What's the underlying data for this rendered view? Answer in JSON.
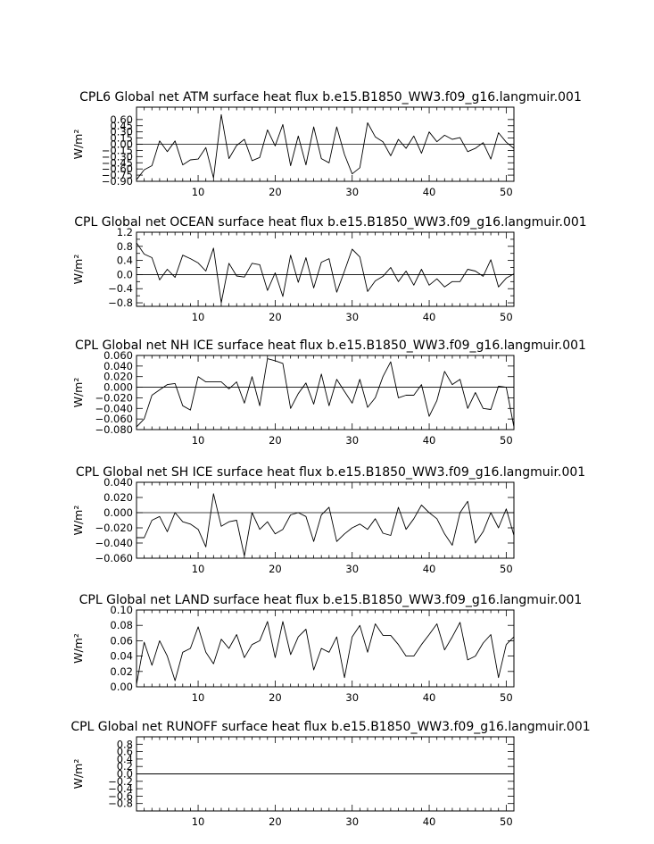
{
  "chart_data": [
    {
      "type": "line",
      "title": "CPL6 Global net ATM surface heat flux b.e15.B1850_WW3.f09_g16.langmuir.001",
      "ylabel": "W/m²",
      "xlim": [
        2,
        51
      ],
      "ylim": [
        -0.9,
        0.9
      ],
      "xticks": [
        10,
        20,
        30,
        40,
        50
      ],
      "yticks": [
        -0.9,
        -0.75,
        -0.6,
        -0.45,
        -0.3,
        -0.15,
        0.0,
        0.15,
        0.3,
        0.45,
        0.6
      ],
      "ytick_labels": [
        "−0.90",
        "−0.75",
        "−0.60",
        "−0.45",
        "−0.30",
        "−0.15",
        "0.00",
        "0.15",
        "0.30",
        "0.45",
        "0.60"
      ],
      "x": [
        2,
        3,
        4,
        5,
        6,
        7,
        8,
        9,
        10,
        11,
        12,
        13,
        14,
        15,
        16,
        17,
        18,
        19,
        20,
        21,
        22,
        23,
        24,
        25,
        26,
        27,
        28,
        29,
        30,
        31,
        32,
        33,
        34,
        35,
        36,
        37,
        38,
        39,
        40,
        41,
        42,
        43,
        44,
        45,
        46,
        47,
        48,
        49,
        50,
        51
      ],
      "values": [
        -0.86,
        -0.62,
        -0.52,
        0.08,
        -0.18,
        0.08,
        -0.5,
        -0.38,
        -0.36,
        -0.08,
        -0.82,
        0.72,
        -0.35,
        -0.03,
        0.12,
        -0.4,
        -0.32,
        0.35,
        -0.04,
        0.48,
        -0.52,
        0.2,
        -0.5,
        0.42,
        -0.35,
        -0.45,
        0.42,
        -0.25,
        -0.72,
        -0.57,
        0.52,
        0.18,
        0.06,
        -0.28,
        0.12,
        -0.1,
        0.2,
        -0.22,
        0.3,
        0.06,
        0.22,
        0.12,
        0.16,
        -0.18,
        -0.1,
        0.04,
        -0.36,
        0.28,
        0.05,
        -0.1
      ],
      "zero_line": true
    },
    {
      "type": "line",
      "title": "CPL Global net OCEAN surface heat flux b.e15.B1850_WW3.f09_g16.langmuir.001",
      "ylabel": "W/m²",
      "xlim": [
        2,
        51
      ],
      "ylim": [
        -0.9,
        1.2
      ],
      "xticks": [
        10,
        20,
        30,
        40,
        50
      ],
      "yticks": [
        -0.8,
        -0.6,
        -0.4,
        -0.2,
        0.0,
        0.2,
        0.4,
        0.6,
        0.8,
        1.0,
        1.2
      ],
      "ytick_labels": [
        "−0.8",
        "",
        "−0.4",
        "",
        "0.0",
        "",
        "0.4",
        "",
        "0.8",
        "",
        "1.2"
      ],
      "x": [
        2,
        3,
        4,
        5,
        6,
        7,
        8,
        9,
        10,
        11,
        12,
        13,
        14,
        15,
        16,
        17,
        18,
        19,
        20,
        21,
        22,
        23,
        24,
        25,
        26,
        27,
        28,
        29,
        30,
        31,
        32,
        33,
        34,
        35,
        36,
        37,
        38,
        39,
        40,
        41,
        42,
        43,
        44,
        45,
        46,
        47,
        48,
        49,
        50,
        51
      ],
      "values": [
        0.9,
        0.58,
        0.48,
        -0.15,
        0.15,
        -0.08,
        0.55,
        0.45,
        0.33,
        0.1,
        0.75,
        -0.8,
        0.32,
        -0.04,
        -0.07,
        0.32,
        0.28,
        -0.45,
        0.05,
        -0.62,
        0.55,
        -0.22,
        0.48,
        -0.38,
        0.35,
        0.45,
        -0.5,
        0.1,
        0.72,
        0.5,
        -0.48,
        -0.18,
        -0.05,
        0.2,
        -0.2,
        0.1,
        -0.3,
        0.15,
        -0.3,
        -0.12,
        -0.35,
        -0.2,
        -0.2,
        0.15,
        0.1,
        -0.05,
        0.42,
        -0.35,
        -0.1,
        0.02
      ],
      "zero_line": true
    },
    {
      "type": "line",
      "title": "CPL Global net NH ICE surface heat flux b.e15.B1850_WW3.f09_g16.langmuir.001",
      "ylabel": "W/m²",
      "xlim": [
        2,
        51
      ],
      "ylim": [
        -0.08,
        0.06
      ],
      "xticks": [
        10,
        20,
        30,
        40,
        50
      ],
      "yticks": [
        -0.08,
        -0.06,
        -0.04,
        -0.02,
        0.0,
        0.02,
        0.04,
        0.06
      ],
      "ytick_labels": [
        "−0.080",
        "−0.060",
        "−0.040",
        "−0.020",
        "0.000",
        "0.020",
        "0.040",
        "0.060"
      ],
      "x": [
        2,
        3,
        4,
        5,
        6,
        7,
        8,
        9,
        10,
        11,
        12,
        13,
        14,
        15,
        16,
        17,
        18,
        19,
        20,
        21,
        22,
        23,
        24,
        25,
        26,
        27,
        28,
        29,
        30,
        31,
        32,
        33,
        34,
        35,
        36,
        37,
        38,
        39,
        40,
        41,
        42,
        43,
        44,
        45,
        46,
        47,
        48,
        49,
        50,
        51
      ],
      "values": [
        -0.075,
        -0.06,
        -0.015,
        -0.005,
        0.005,
        0.007,
        -0.035,
        -0.043,
        0.02,
        0.01,
        0.01,
        0.01,
        -0.003,
        0.01,
        -0.03,
        0.02,
        -0.035,
        0.054,
        0.05,
        0.045,
        -0.04,
        -0.012,
        0.008,
        -0.032,
        0.025,
        -0.035,
        0.015,
        -0.008,
        -0.03,
        0.015,
        -0.038,
        -0.02,
        0.02,
        0.048,
        -0.02,
        -0.015,
        -0.015,
        0.005,
        -0.055,
        -0.025,
        0.03,
        0.005,
        0.015,
        -0.04,
        -0.01,
        -0.04,
        -0.042,
        0.002,
        0.0,
        -0.075
      ],
      "zero_line": true
    },
    {
      "type": "line",
      "title": "CPL Global net SH ICE surface heat flux b.e15.B1850_WW3.f09_g16.langmuir.001",
      "ylabel": "W/m²",
      "xlim": [
        2,
        51
      ],
      "ylim": [
        -0.06,
        0.04
      ],
      "xticks": [
        10,
        20,
        30,
        40,
        50
      ],
      "yticks": [
        -0.06,
        -0.04,
        -0.02,
        0.0,
        0.02,
        0.04
      ],
      "ytick_labels": [
        "−0.060",
        "−0.040",
        "−0.020",
        "0.000",
        "0.020",
        "0.040"
      ],
      "x": [
        2,
        3,
        4,
        5,
        6,
        7,
        8,
        9,
        10,
        11,
        12,
        13,
        14,
        15,
        16,
        17,
        18,
        19,
        20,
        21,
        22,
        23,
        24,
        25,
        26,
        27,
        28,
        29,
        30,
        31,
        32,
        33,
        34,
        35,
        36,
        37,
        38,
        39,
        40,
        41,
        42,
        43,
        44,
        45,
        46,
        47,
        48,
        49,
        50,
        51
      ],
      "values": [
        -0.033,
        -0.033,
        -0.01,
        -0.005,
        -0.025,
        0.0,
        -0.012,
        -0.015,
        -0.022,
        -0.045,
        0.025,
        -0.018,
        -0.012,
        -0.01,
        -0.057,
        0.0,
        -0.022,
        -0.012,
        -0.028,
        -0.022,
        -0.003,
        0.0,
        -0.005,
        -0.038,
        -0.003,
        0.007,
        -0.038,
        -0.028,
        -0.02,
        -0.015,
        -0.022,
        -0.008,
        -0.027,
        -0.03,
        0.007,
        -0.022,
        -0.008,
        0.01,
        0.0,
        -0.008,
        -0.028,
        -0.043,
        0.0,
        0.015,
        -0.04,
        -0.025,
        0.0,
        -0.02,
        0.005,
        -0.03
      ],
      "zero_line": true
    },
    {
      "type": "line",
      "title": "CPL Global net LAND surface heat flux b.e15.B1850_WW3.f09_g16.langmuir.001",
      "ylabel": "W/m²",
      "xlim": [
        2,
        51
      ],
      "ylim": [
        0.0,
        0.1
      ],
      "xticks": [
        10,
        20,
        30,
        40,
        50
      ],
      "yticks": [
        0.0,
        0.02,
        0.04,
        0.06,
        0.08,
        0.1
      ],
      "ytick_labels": [
        "0.00",
        "0.02",
        "0.04",
        "0.06",
        "0.08",
        "0.10"
      ],
      "x": [
        2,
        3,
        4,
        5,
        6,
        7,
        8,
        9,
        10,
        11,
        12,
        13,
        14,
        15,
        16,
        17,
        18,
        19,
        20,
        21,
        22,
        23,
        24,
        25,
        26,
        27,
        28,
        29,
        30,
        31,
        32,
        33,
        34,
        35,
        36,
        37,
        38,
        39,
        40,
        41,
        42,
        43,
        44,
        45,
        46,
        47,
        48,
        49,
        50,
        51
      ],
      "values": [
        0.003,
        0.058,
        0.028,
        0.06,
        0.04,
        0.008,
        0.045,
        0.05,
        0.078,
        0.045,
        0.03,
        0.062,
        0.05,
        0.068,
        0.038,
        0.055,
        0.06,
        0.085,
        0.038,
        0.085,
        0.042,
        0.065,
        0.075,
        0.022,
        0.05,
        0.045,
        0.065,
        0.012,
        0.065,
        0.08,
        0.045,
        0.082,
        0.067,
        0.067,
        0.055,
        0.04,
        0.04,
        0.055,
        0.068,
        0.082,
        0.048,
        0.065,
        0.084,
        0.035,
        0.04,
        0.057,
        0.068,
        0.012,
        0.055,
        0.065
      ],
      "zero_line": false
    },
    {
      "type": "line",
      "title": "CPL Global net RUNOFF surface heat flux b.e15.B1850_WW3.f09_g16.langmuir.001",
      "ylabel": "W/m²",
      "xlim": [
        2,
        51
      ],
      "ylim": [
        -1.0,
        1.0
      ],
      "xticks": [
        10,
        20,
        30,
        40,
        50
      ],
      "yticks": [
        -0.8,
        -0.6,
        -0.4,
        -0.2,
        0.0,
        0.2,
        0.4,
        0.6,
        0.8
      ],
      "ytick_labels": [
        "−0.8",
        "−0.6",
        "−0.4",
        "−0.2",
        "0.0",
        "0.2",
        "0.4",
        "0.6",
        "0.8"
      ],
      "x": [
        2,
        3,
        4,
        5,
        6,
        7,
        8,
        9,
        10,
        11,
        12,
        13,
        14,
        15,
        16,
        17,
        18,
        19,
        20,
        21,
        22,
        23,
        24,
        25,
        26,
        27,
        28,
        29,
        30,
        31,
        32,
        33,
        34,
        35,
        36,
        37,
        38,
        39,
        40,
        41,
        42,
        43,
        44,
        45,
        46,
        47,
        48,
        49,
        50,
        51
      ],
      "values": [
        0,
        0,
        0,
        0,
        0,
        0,
        0,
        0,
        0,
        0,
        0,
        0,
        0,
        0,
        0,
        0,
        0,
        0,
        0,
        0,
        0,
        0,
        0,
        0,
        0,
        0,
        0,
        0,
        0,
        0,
        0,
        0,
        0,
        0,
        0,
        0,
        0,
        0,
        0,
        0,
        0,
        0,
        0,
        0,
        0,
        0,
        0,
        0,
        0,
        0
      ],
      "zero_line": true
    }
  ]
}
